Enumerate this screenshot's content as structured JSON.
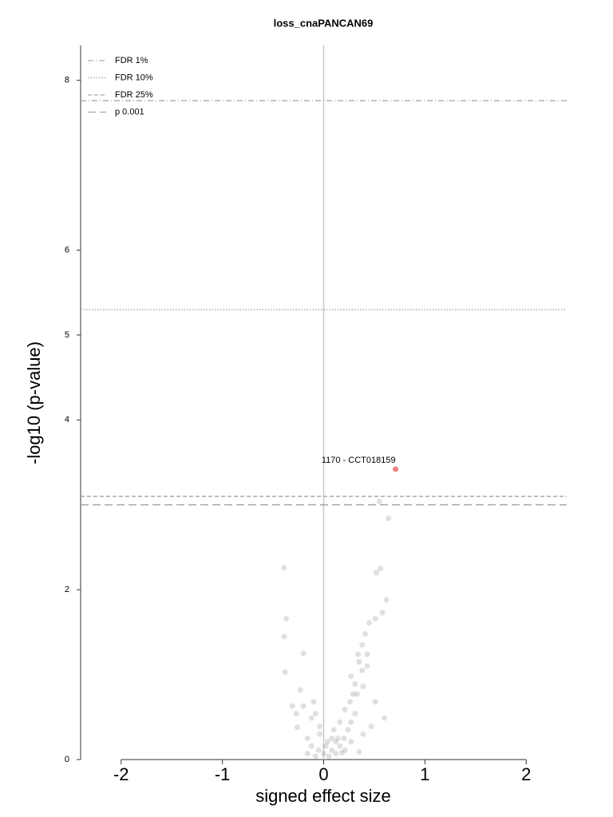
{
  "chart_data": {
    "type": "scatter",
    "title": "loss_cnaPANCAN69",
    "xlabel": "signed effect size",
    "ylabel": "-log10 (p-value)",
    "xlim": [
      -2.4,
      2.4
    ],
    "ylim": [
      0,
      8.41
    ],
    "xticks": [
      -2,
      -1,
      0,
      1,
      2
    ],
    "yticks": [
      0,
      2,
      4,
      5,
      6,
      8
    ],
    "point_color": "#555555",
    "points": {
      "x": [
        -0.39,
        -0.37,
        -0.39,
        -0.38,
        -0.2,
        0.55,
        0.64,
        0.56,
        0.52,
        0.62,
        0.58,
        0.51,
        0.45,
        0.41,
        0.38,
        0.43,
        0.35,
        0.27,
        0.31,
        0.39,
        0.6,
        -0.23,
        -0.26,
        -0.12,
        -0.1,
        -0.2,
        -0.04,
        0.04,
        0.08,
        0.12,
        0.16,
        0.2,
        0.24,
        0.27,
        0.31,
        0.26,
        0.29,
        0.21,
        0.16,
        0.1,
        0.02,
        -0.05,
        -0.12,
        -0.16,
        -0.08,
        0.05,
        0.18,
        0.35,
        0.39,
        0.47,
        0.51,
        -0.16,
        -0.04,
        0.14,
        0.27,
        -0.31,
        -0.27,
        -0.08,
        0.21,
        0.12,
        0,
        0.08,
        0.33,
        0.38,
        0.43,
        0.34
      ],
      "y": [
        2.26,
        1.66,
        1.45,
        1.03,
        1.25,
        3.04,
        2.84,
        2.25,
        2.2,
        1.88,
        1.73,
        1.66,
        1.61,
        1.48,
        1.35,
        1.24,
        1.15,
        0.98,
        0.89,
        0.86,
        0.49,
        0.82,
        0.38,
        0.49,
        0.68,
        0.63,
        0.3,
        0.21,
        0.11,
        0.07,
        0.16,
        0.25,
        0.35,
        0.44,
        0.54,
        0.68,
        0.77,
        0.59,
        0.44,
        0.35,
        0.16,
        0.11,
        0.16,
        0.07,
        0.04,
        0.04,
        0.08,
        0.09,
        0.3,
        0.39,
        0.68,
        0.25,
        0.39,
        0.25,
        0.21,
        0.63,
        0.54,
        0.54,
        0.11,
        0.21,
        0.07,
        0.25,
        0.77,
        1.05,
        1.1,
        1.24
      ]
    },
    "highlight": {
      "x": 0.71,
      "y": 3.42,
      "label": "1170 - CCT018159",
      "color": "#f08080"
    },
    "thresholds": [
      {
        "name": "FDR 1%",
        "value": 7.76,
        "dash": "dashdot"
      },
      {
        "name": "FDR 10%",
        "value": 5.3,
        "dash": "dotted"
      },
      {
        "name": "FDR 25%",
        "value": 3.1,
        "dash": "dashed"
      },
      {
        "name": "p 0.001",
        "value": 3.0,
        "dash": "longdash"
      }
    ],
    "legend": "upper left"
  }
}
